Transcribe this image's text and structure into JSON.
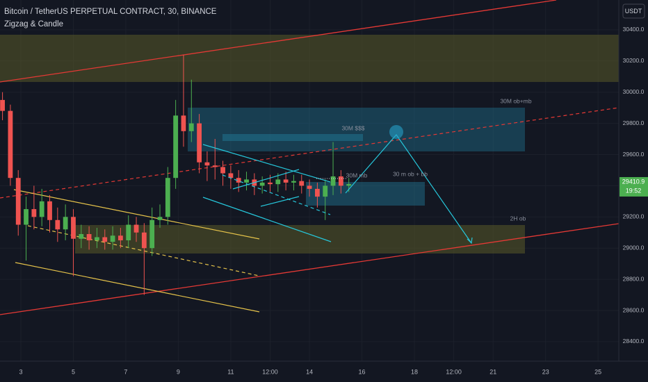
{
  "chart_data": {
    "type": "candlestick",
    "title": "Bitcoin / TetherUS PERPETUAL CONTRACT, 30, BINANCE",
    "indicator": "Zigzag & Candle",
    "currency": "USDT",
    "annotations": [
      "30M ob+mb",
      "30M $$$",
      "30M mb",
      "30 m ob + bb",
      "2H ob"
    ],
    "last_price": 29410.9,
    "countdown": "19:52",
    "up_color": "#4caf50",
    "down_color": "#ef5350",
    "xlim": [
      2.205,
      25.79
    ],
    "xticks": [
      {
        "value": 3,
        "label": "3"
      },
      {
        "value": 5,
        "label": "5"
      },
      {
        "value": 7,
        "label": "7"
      },
      {
        "value": 9,
        "label": "9"
      },
      {
        "value": 11,
        "label": "11"
      },
      {
        "value": 12.5,
        "label": "12:00"
      },
      {
        "value": 14,
        "label": "14"
      },
      {
        "value": 16,
        "label": "16"
      },
      {
        "value": 18,
        "label": "18"
      },
      {
        "value": 19.5,
        "label": "12:00"
      },
      {
        "value": 21,
        "label": "21"
      },
      {
        "value": 23,
        "label": "23"
      },
      {
        "value": 25,
        "label": "25"
      }
    ],
    "ylim": [
      28275,
      30591
    ],
    "yticks": [
      {
        "value": 28400,
        "label": "28400.0"
      },
      {
        "value": 28600,
        "label": "28600.0"
      },
      {
        "value": 28800,
        "label": "28800.0"
      },
      {
        "value": 29000,
        "label": "29000.0"
      },
      {
        "value": 29200,
        "label": "29200.0"
      },
      {
        "value": 29400,
        "label": "29400.0"
      },
      {
        "value": 29600,
        "label": "29600.0"
      },
      {
        "value": 29800,
        "label": "29800.0"
      },
      {
        "value": 30000,
        "label": "30000.0"
      },
      {
        "value": 30200,
        "label": "30200.0"
      },
      {
        "value": 30400,
        "label": "30400.0"
      }
    ],
    "grid": true,
    "x": [
      2.3,
      2.6,
      2.9,
      3.2,
      3.5,
      3.8,
      4.1,
      4.4,
      4.7,
      5.0,
      5.3,
      5.6,
      5.9,
      6.2,
      6.5,
      6.8,
      7.1,
      7.4,
      7.7,
      8.0,
      8.3,
      8.6,
      8.9,
      9.2,
      9.5,
      9.8,
      10.1,
      10.4,
      10.7,
      11.0,
      11.3,
      11.6,
      11.9,
      12.2,
      12.5,
      12.8,
      13.1,
      13.4,
      13.7,
      14.0,
      14.3,
      14.6,
      14.9,
      15.2,
      15.5
    ],
    "open": [
      29950,
      29880,
      29450,
      29150,
      29250,
      29200,
      29300,
      29180,
      29120,
      29200,
      29060,
      29090,
      29050,
      29070,
      29040,
      29080,
      29050,
      29150,
      29100,
      29000,
      29180,
      29200,
      29450,
      29850,
      29750,
      29800,
      29550,
      29530,
      29520,
      29480,
      29450,
      29420,
      29440,
      29400,
      29420,
      29410,
      29440,
      29420,
      29430,
      29400,
      29380,
      29330,
      29400,
      29460,
      29400
    ],
    "high": [
      30000,
      29920,
      29500,
      29330,
      29400,
      29380,
      29340,
      29260,
      29280,
      29250,
      29150,
      29140,
      29130,
      29120,
      29140,
      29130,
      29210,
      29200,
      29160,
      29260,
      29280,
      29520,
      29950,
      30240,
      30080,
      29860,
      29620,
      29700,
      29560,
      29530,
      29500,
      29490,
      29480,
      29460,
      29470,
      29480,
      29490,
      29470,
      29470,
      29440,
      29420,
      29440,
      29680,
      29500,
      29450
    ],
    "low": [
      29820,
      29400,
      29080,
      28920,
      29120,
      29140,
      29100,
      29040,
      29050,
      28820,
      29000,
      28990,
      29000,
      28990,
      28990,
      29000,
      29000,
      29040,
      28700,
      28950,
      29130,
      29150,
      29380,
      29650,
      29680,
      29480,
      29430,
      29440,
      29400,
      29380,
      29360,
      29370,
      29340,
      29350,
      29360,
      29360,
      29370,
      29370,
      29350,
      29330,
      29260,
      29180,
      29340,
      29350,
      29360
    ],
    "close": [
      29880,
      29450,
      29150,
      29250,
      29200,
      29300,
      29180,
      29120,
      29200,
      29060,
      29090,
      29050,
      29070,
      29040,
      29080,
      29050,
      29150,
      29100,
      29000,
      29180,
      29200,
      29450,
      29850,
      29750,
      29800,
      29550,
      29530,
      29520,
      29480,
      29450,
      29420,
      29440,
      29400,
      29420,
      29410,
      29440,
      29420,
      29430,
      29400,
      29380,
      29330,
      29400,
      29460,
      29400,
      29411
    ]
  }
}
